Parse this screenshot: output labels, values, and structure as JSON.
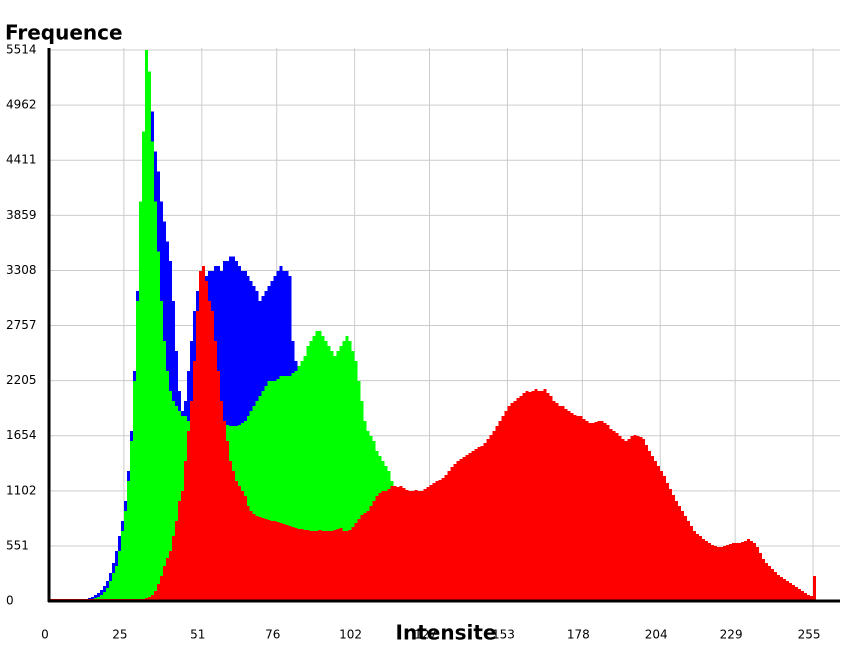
{
  "chart_data": {
    "type": "histogram",
    "y_label": "Frequence",
    "x_label": "Intensite",
    "bins": [
      0,
      1,
      2,
      3,
      4,
      5,
      6,
      7,
      8,
      9,
      10,
      11,
      12,
      13,
      14,
      15,
      16,
      17,
      18,
      19,
      20,
      21,
      22,
      23,
      24,
      25,
      26,
      27,
      28,
      29,
      30,
      31,
      32,
      33,
      34,
      35,
      36,
      37,
      38,
      39,
      40,
      41,
      42,
      43,
      44,
      45,
      46,
      47,
      48,
      49,
      50,
      51,
      52,
      53,
      54,
      55,
      56,
      57,
      58,
      59,
      60,
      61,
      62,
      63,
      64,
      65,
      66,
      67,
      68,
      69,
      70,
      71,
      72,
      73,
      74,
      75,
      76,
      77,
      78,
      79,
      80,
      81,
      82,
      83,
      84,
      85,
      86,
      87,
      88,
      89,
      90,
      91,
      92,
      93,
      94,
      95,
      96,
      97,
      98,
      99,
      100,
      101,
      102,
      103,
      104,
      105,
      106,
      107,
      108,
      109,
      110,
      111,
      112,
      113,
      114,
      115,
      116,
      117,
      118,
      119,
      120,
      121,
      122,
      123,
      124,
      125,
      126,
      127,
      128,
      129,
      130,
      131,
      132,
      133,
      134,
      135,
      136,
      137,
      138,
      139,
      140,
      141,
      142,
      143,
      144,
      145,
      146,
      147,
      148,
      149,
      150,
      151,
      152,
      153,
      154,
      155,
      156,
      157,
      158,
      159,
      160,
      161,
      162,
      163,
      164,
      165,
      166,
      167,
      168,
      169,
      170,
      171,
      172,
      173,
      174,
      175,
      176,
      177,
      178,
      179,
      180,
      181,
      182,
      183,
      184,
      185,
      186,
      187,
      188,
      189,
      190,
      191,
      192,
      193,
      194,
      195,
      196,
      197,
      198,
      199,
      200,
      201,
      202,
      203,
      204,
      205,
      206,
      207,
      208,
      209,
      210,
      211,
      212,
      213,
      214,
      215,
      216,
      217,
      218,
      219,
      220,
      221,
      222,
      223,
      224,
      225,
      226,
      227,
      228,
      229,
      230,
      231,
      232,
      233,
      234,
      235,
      236,
      237,
      238,
      239,
      240,
      241,
      242,
      243,
      244,
      245,
      246,
      247,
      248,
      249,
      250,
      251,
      252,
      253,
      254,
      255,
      256
    ],
    "series": [
      {
        "color": "#0000ff",
        "values": [
          10,
          10,
          10,
          10,
          10,
          10,
          10,
          10,
          10,
          10,
          10,
          10,
          20,
          30,
          40,
          60,
          80,
          110,
          150,
          200,
          280,
          380,
          500,
          650,
          800,
          1000,
          1300,
          1700,
          2300,
          3100,
          4000,
          4700,
          5400,
          5200,
          4900,
          4500,
          4300,
          4000,
          3800,
          3600,
          3400,
          3000,
          2500,
          2100,
          1900,
          2000,
          2300,
          2600,
          2900,
          3100,
          3200,
          3200,
          3250,
          3300,
          3300,
          3350,
          3350,
          3300,
          3400,
          3400,
          3450,
          3450,
          3400,
          3350,
          3300,
          3300,
          3250,
          3200,
          3150,
          3100,
          3000,
          3050,
          3100,
          3150,
          3200,
          3250,
          3300,
          3350,
          3300,
          3300,
          3250,
          2600,
          2400,
          2300,
          2200,
          2150,
          2100,
          2050,
          2000,
          1950,
          1900,
          1850,
          1800,
          1750,
          1700,
          1650,
          1600,
          1550,
          1500,
          1450,
          1400,
          1350,
          1300,
          1250,
          1200,
          1150,
          1100,
          1050,
          1000,
          950,
          900,
          880,
          860,
          840,
          820,
          800,
          780,
          760,
          740,
          720,
          700,
          690,
          680,
          670,
          660,
          650,
          640,
          630,
          620,
          610,
          600,
          600,
          600,
          600,
          600,
          600,
          600,
          600,
          600,
          600,
          600,
          600,
          600,
          600,
          600,
          600,
          600,
          600,
          600,
          600,
          600,
          600,
          600,
          600,
          600,
          600,
          600,
          600,
          600,
          600,
          600,
          600,
          600,
          600,
          600,
          600,
          600,
          600,
          600,
          600,
          600,
          600,
          600,
          600,
          600,
          600,
          600,
          600,
          600,
          600,
          600,
          600,
          600,
          600,
          600,
          600,
          600,
          600,
          600,
          600,
          550,
          550,
          550,
          550,
          550,
          550,
          550,
          550,
          550,
          550,
          500,
          500,
          500,
          500,
          500,
          500,
          500,
          500,
          500,
          500,
          400,
          400,
          400,
          400,
          400,
          400,
          400,
          400,
          400,
          400,
          300,
          300,
          300,
          300,
          300,
          300,
          300,
          300,
          300,
          300,
          200,
          200,
          200,
          200,
          200,
          200,
          200,
          200,
          200,
          200,
          100,
          100,
          100,
          100,
          100,
          100,
          100,
          100,
          100,
          100,
          50,
          50,
          50,
          50,
          50,
          50
        ]
      },
      {
        "color": "#00ff00",
        "values": [
          10,
          10,
          10,
          10,
          10,
          10,
          10,
          10,
          10,
          10,
          10,
          10,
          10,
          10,
          20,
          30,
          40,
          60,
          90,
          130,
          200,
          280,
          350,
          500,
          700,
          900,
          1200,
          1600,
          2200,
          3000,
          4000,
          4700,
          5514,
          5300,
          4600,
          4000,
          3500,
          3000,
          2600,
          2300,
          2100,
          2000,
          1950,
          1900,
          1850,
          1850,
          1800,
          1800,
          1800,
          1800,
          1800,
          1800,
          1800,
          1800,
          1800,
          1800,
          1800,
          1800,
          1780,
          1760,
          1750,
          1750,
          1750,
          1760,
          1780,
          1800,
          1850,
          1900,
          1950,
          2000,
          2050,
          2100,
          2150,
          2200,
          2200,
          2200,
          2220,
          2250,
          2250,
          2250,
          2250,
          2280,
          2300,
          2350,
          2400,
          2450,
          2550,
          2600,
          2650,
          2700,
          2700,
          2650,
          2600,
          2550,
          2500,
          2450,
          2500,
          2550,
          2600,
          2650,
          2600,
          2500,
          2400,
          2200,
          2000,
          1800,
          1700,
          1650,
          1600,
          1500,
          1450,
          1400,
          1350,
          1300,
          1200,
          1150,
          1100,
          1050,
          1000,
          950,
          900,
          900,
          900,
          900,
          900,
          950,
          950,
          1000,
          1000,
          1050,
          1050,
          1100,
          1100,
          1150,
          1150,
          1200,
          1200,
          1250,
          1250,
          1300,
          1300,
          1300,
          1350,
          1350,
          1400,
          1400,
          1400,
          1450,
          1450,
          1450,
          1500,
          1500,
          1500,
          1500,
          1500,
          1500,
          1500,
          1500,
          1500,
          1500,
          1500,
          1450,
          1450,
          1450,
          1400,
          1400,
          1400,
          1350,
          1350,
          1350,
          1300,
          1300,
          1300,
          1250,
          1250,
          1200,
          1200,
          1150,
          1150,
          1100,
          1100,
          1100,
          1050,
          1050,
          1000,
          1000,
          950,
          950,
          900,
          900,
          850,
          850,
          800,
          800,
          750,
          750,
          700,
          700,
          650,
          650,
          600,
          600,
          550,
          550,
          500,
          500,
          450,
          450,
          400,
          400,
          350,
          350,
          300,
          300,
          300,
          250,
          250,
          250,
          200,
          200,
          200,
          200,
          180,
          180,
          160,
          160,
          140,
          140,
          120,
          120,
          100,
          100,
          90,
          90,
          80,
          80,
          70,
          70,
          60,
          60,
          50,
          50,
          40,
          40,
          30,
          30,
          20,
          20,
          20,
          20,
          10,
          10,
          10,
          10,
          10,
          10
        ]
      },
      {
        "color": "#ff0000",
        "values": [
          20,
          20,
          20,
          20,
          20,
          20,
          20,
          20,
          20,
          20,
          20,
          20,
          20,
          20,
          20,
          20,
          20,
          20,
          20,
          20,
          20,
          20,
          20,
          20,
          20,
          20,
          20,
          20,
          20,
          20,
          20,
          20,
          30,
          40,
          60,
          100,
          170,
          250,
          350,
          430,
          500,
          650,
          800,
          1000,
          1100,
          1400,
          1700,
          2000,
          2400,
          2900,
          3300,
          3350,
          3200,
          3000,
          2900,
          2600,
          2300,
          2000,
          1800,
          1600,
          1400,
          1300,
          1200,
          1150,
          1100,
          1050,
          950,
          900,
          870,
          850,
          840,
          830,
          820,
          810,
          800,
          800,
          790,
          780,
          770,
          760,
          750,
          740,
          730,
          720,
          720,
          710,
          710,
          700,
          700,
          700,
          710,
          700,
          700,
          700,
          700,
          710,
          720,
          730,
          700,
          700,
          710,
          740,
          780,
          820,
          860,
          880,
          900,
          950,
          1000,
          1050,
          1080,
          1100,
          1100,
          1120,
          1150,
          1150,
          1140,
          1150,
          1130,
          1110,
          1100,
          1100,
          1110,
          1100,
          1100,
          1120,
          1140,
          1160,
          1180,
          1200,
          1210,
          1230,
          1260,
          1300,
          1340,
          1370,
          1400,
          1420,
          1440,
          1460,
          1480,
          1500,
          1520,
          1540,
          1550,
          1580,
          1620,
          1660,
          1700,
          1750,
          1800,
          1850,
          1900,
          1950,
          1980,
          2000,
          2030,
          2050,
          2080,
          2100,
          2090,
          2100,
          2120,
          2100,
          2100,
          2120,
          2080,
          2050,
          2000,
          1980,
          1950,
          1950,
          1920,
          1900,
          1880,
          1860,
          1850,
          1850,
          1820,
          1800,
          1780,
          1780,
          1790,
          1800,
          1800,
          1780,
          1760,
          1720,
          1700,
          1680,
          1650,
          1620,
          1600,
          1620,
          1650,
          1660,
          1650,
          1640,
          1620,
          1560,
          1500,
          1450,
          1400,
          1350,
          1300,
          1250,
          1180,
          1120,
          1060,
          1000,
          950,
          900,
          850,
          800,
          750,
          700,
          670,
          650,
          620,
          600,
          580,
          560,
          550,
          540,
          540,
          550,
          560,
          570,
          580,
          580,
          580,
          590,
          600,
          620,
          600,
          580,
          540,
          480,
          420,
          380,
          350,
          320,
          290,
          260,
          240,
          220,
          200,
          180,
          160,
          140,
          120,
          100,
          80,
          60,
          50,
          250
        ]
      }
    ],
    "xlim": [
      0,
      264
    ],
    "xticks": [
      0,
      25,
      51,
      76,
      102,
      127,
      153,
      178,
      204,
      229,
      255
    ],
    "ylim": [
      0,
      5514
    ],
    "yticks": [
      0,
      551,
      1102,
      1654,
      2205,
      2757,
      3308,
      3859,
      4411,
      4962,
      5514
    ],
    "grid": true
  }
}
